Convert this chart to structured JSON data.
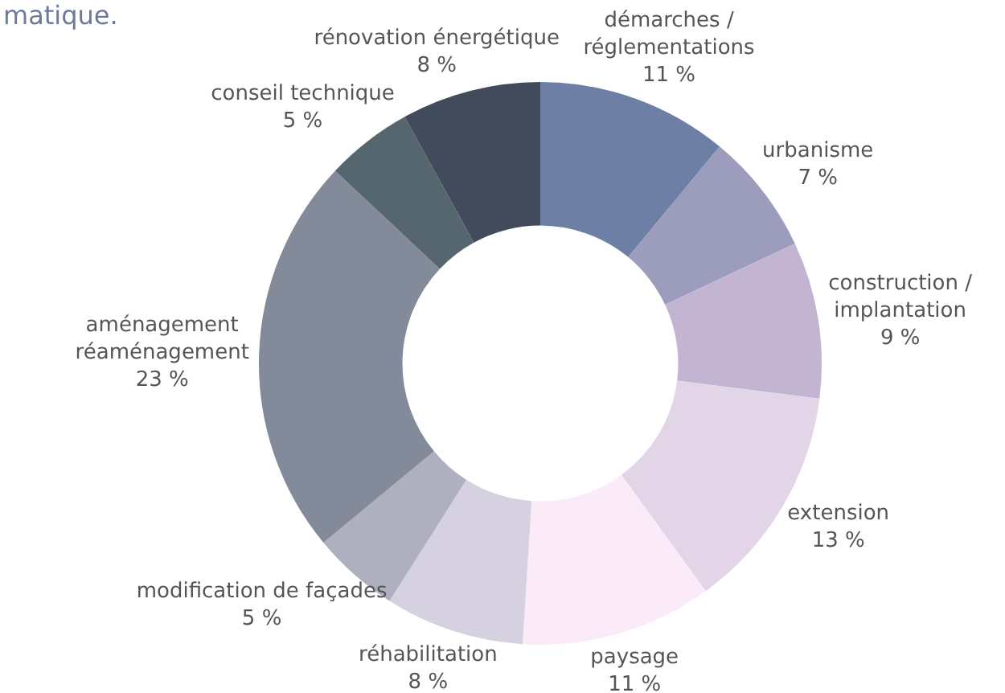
{
  "chart_data": {
    "type": "donut",
    "title": "matique.",
    "categories": [
      "démarches /\nréglementations",
      "urbanisme",
      "construction /\nimplantation",
      "extension",
      "paysage",
      "réhabilitation",
      "modification de façades",
      "aménagement\nréaménagement",
      "conseil technique",
      "rénovation énergétique"
    ],
    "values": [
      11,
      7,
      9,
      13,
      11,
      8,
      5,
      23,
      5,
      8
    ],
    "value_labels": [
      "11 %",
      "7 %",
      "9 %",
      "13 %",
      "11 %",
      "8 %",
      "5 %",
      "23 %",
      "5 %",
      "8 %"
    ],
    "colors": [
      "#6e7fa6",
      "#9c9cbd",
      "#c3b5d2",
      "#e2d5e8",
      "#fbebf9",
      "#d6d1e0",
      "#aeb0bf",
      "#838b9a",
      "#56666f",
      "#424b5b"
    ],
    "legend": false
  }
}
